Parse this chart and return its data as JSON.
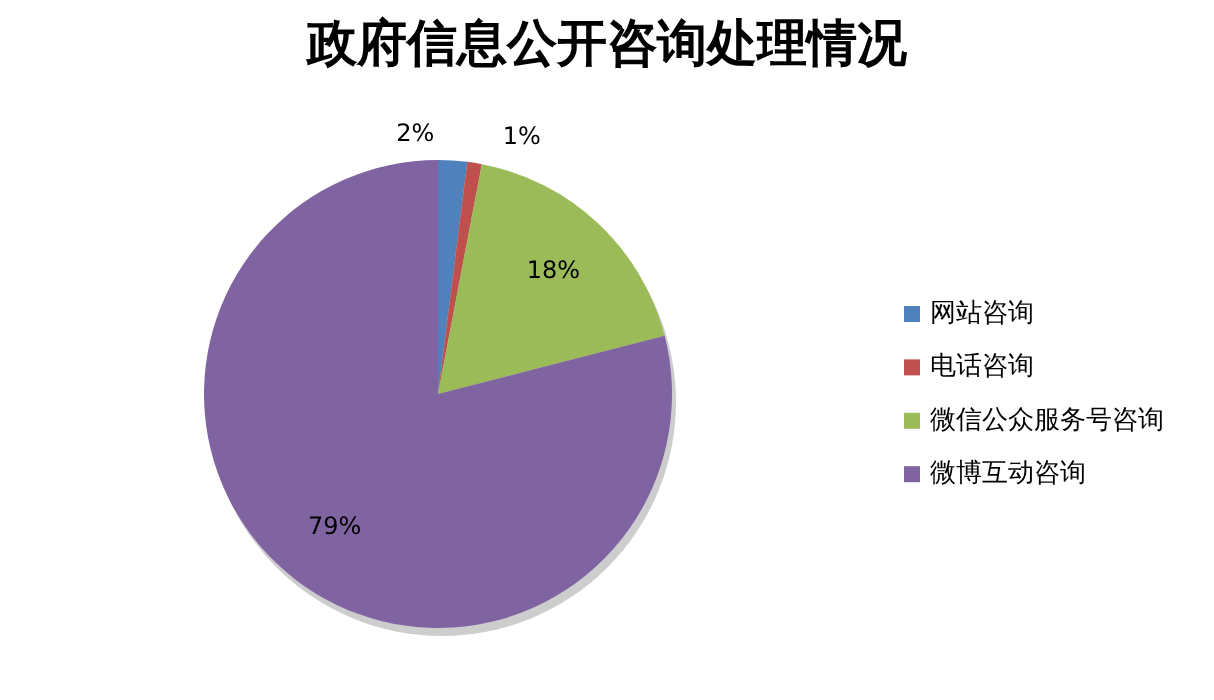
{
  "chart_data": {
    "type": "pie",
    "title": "政府信息公开咨询处理情况",
    "categories": [
      "网站咨询",
      "电话咨询",
      "微信公众服务号咨询",
      "微博互动咨询"
    ],
    "values": [
      2,
      1,
      18,
      79
    ],
    "colors": [
      "#4f81bd",
      "#c0504d",
      "#9bbb59",
      "#8064a2"
    ],
    "value_labels": [
      "2%",
      "1%",
      "18%",
      "79%"
    ],
    "legend": "right"
  }
}
